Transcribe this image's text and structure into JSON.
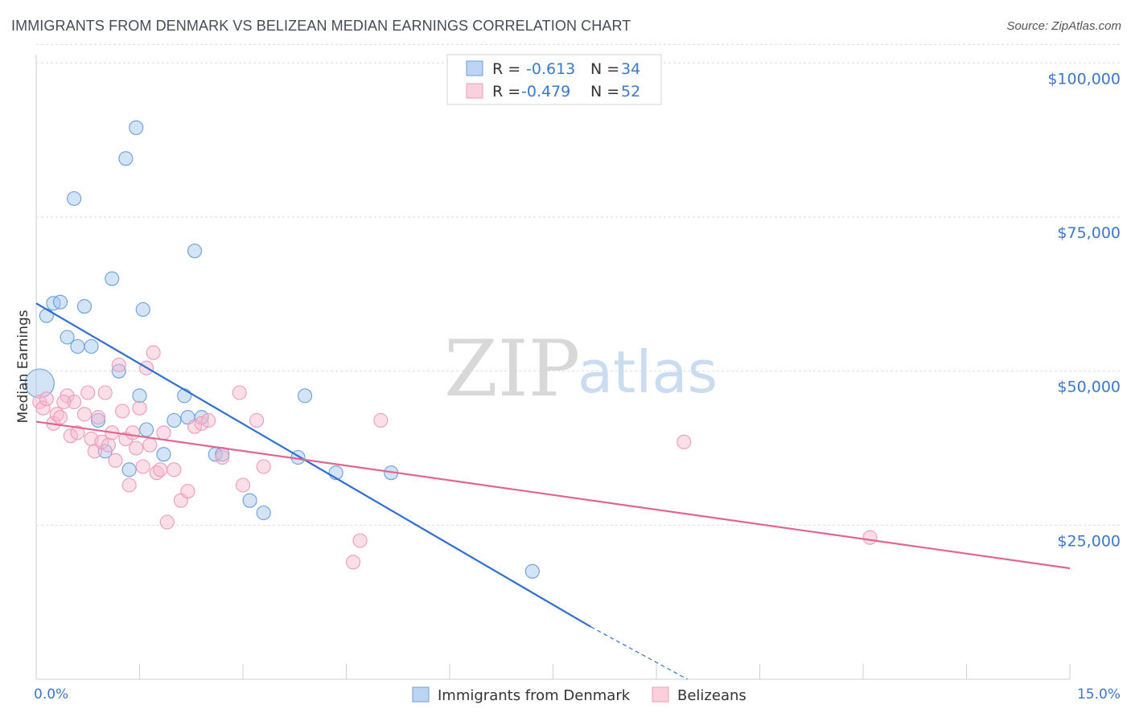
{
  "header": {
    "title": "IMMIGRANTS FROM DENMARK VS BELIZEAN MEDIAN EARNINGS CORRELATION CHART",
    "source": "Source: ZipAtlas.com"
  },
  "watermark": {
    "zip": "ZIP",
    "atlas": "atlas"
  },
  "legend": {
    "r_label": "R =",
    "n_label": "N =",
    "rows": [
      {
        "r": "-0.613",
        "n": "34"
      },
      {
        "r": "-0.479",
        "n": "52"
      }
    ]
  },
  "bottom_legend": [
    "Immigrants from Denmark",
    "Belizeans"
  ],
  "chart_data": {
    "type": "scatter",
    "title": "IMMIGRANTS FROM DENMARK VS BELIZEAN MEDIAN EARNINGS CORRELATION CHART",
    "xlabel": "",
    "ylabel": "Median Earnings",
    "xlim": [
      0,
      15
    ],
    "ylim": [
      0,
      105000
    ],
    "x_tick_labels": [
      "0.0%",
      "15.0%"
    ],
    "y_ticks": [
      25000,
      50000,
      75000,
      100000
    ],
    "y_tick_labels": [
      "$25,000",
      "$50,000",
      "$75,000",
      "$100,000"
    ],
    "grid": "horizontal dashed",
    "legend_position": "top-center",
    "colors": {
      "denmark": "#6a9fdc",
      "belizeans": "#f09ab8",
      "denmark_line": "#2f6fcf",
      "belizeans_line": "#e0668f"
    },
    "series": [
      {
        "name": "Immigrants from Denmark",
        "color": "#6a9fdc",
        "points": [
          [
            0.05,
            48000
          ],
          [
            0.15,
            59000
          ],
          [
            0.25,
            61000
          ],
          [
            0.35,
            61200
          ],
          [
            0.45,
            55500
          ],
          [
            0.55,
            78000
          ],
          [
            0.6,
            54000
          ],
          [
            0.7,
            60500
          ],
          [
            0.8,
            54000
          ],
          [
            0.9,
            42000
          ],
          [
            1.0,
            37000
          ],
          [
            1.1,
            65000
          ],
          [
            1.2,
            50000
          ],
          [
            1.3,
            84500
          ],
          [
            1.35,
            34000
          ],
          [
            1.45,
            89500
          ],
          [
            1.55,
            60000
          ],
          [
            1.5,
            46000
          ],
          [
            1.6,
            40500
          ],
          [
            1.85,
            36500
          ],
          [
            2.0,
            42000
          ],
          [
            2.15,
            46000
          ],
          [
            2.2,
            42500
          ],
          [
            2.3,
            69500
          ],
          [
            2.4,
            42500
          ],
          [
            2.6,
            36500
          ],
          [
            2.7,
            36500
          ],
          [
            3.1,
            29000
          ],
          [
            3.3,
            27000
          ],
          [
            3.8,
            36000
          ],
          [
            3.9,
            46000
          ],
          [
            4.35,
            33500
          ],
          [
            5.15,
            33500
          ],
          [
            7.2,
            17500
          ]
        ]
      },
      {
        "name": "Belizeans",
        "color": "#f09ab8",
        "points": [
          [
            0.05,
            45000
          ],
          [
            0.1,
            44000
          ],
          [
            0.15,
            45500
          ],
          [
            0.25,
            41500
          ],
          [
            0.3,
            43000
          ],
          [
            0.35,
            42500
          ],
          [
            0.45,
            46000
          ],
          [
            0.5,
            39500
          ],
          [
            0.55,
            45000
          ],
          [
            0.6,
            40000
          ],
          [
            0.7,
            43000
          ],
          [
            0.75,
            46500
          ],
          [
            0.8,
            39000
          ],
          [
            0.85,
            37000
          ],
          [
            0.9,
            42500
          ],
          [
            0.95,
            38500
          ],
          [
            1.0,
            46500
          ],
          [
            1.05,
            38000
          ],
          [
            1.1,
            40000
          ],
          [
            1.15,
            35500
          ],
          [
            1.2,
            51000
          ],
          [
            1.25,
            43500
          ],
          [
            1.3,
            39000
          ],
          [
            1.35,
            31500
          ],
          [
            1.4,
            40000
          ],
          [
            1.45,
            37500
          ],
          [
            1.5,
            44000
          ],
          [
            1.55,
            34500
          ],
          [
            1.6,
            50500
          ],
          [
            1.65,
            38000
          ],
          [
            1.7,
            53000
          ],
          [
            1.75,
            33500
          ],
          [
            1.8,
            34000
          ],
          [
            1.85,
            40000
          ],
          [
            1.9,
            25500
          ],
          [
            2.0,
            34000
          ],
          [
            2.1,
            29000
          ],
          [
            2.2,
            30500
          ],
          [
            2.3,
            41000
          ],
          [
            2.4,
            41500
          ],
          [
            2.5,
            42000
          ],
          [
            2.7,
            36000
          ],
          [
            2.95,
            46500
          ],
          [
            3.0,
            31500
          ],
          [
            3.2,
            42000
          ],
          [
            3.3,
            34500
          ],
          [
            4.6,
            19000
          ],
          [
            4.7,
            22500
          ],
          [
            5.0,
            42000
          ],
          [
            9.4,
            38500
          ],
          [
            12.1,
            23000
          ],
          [
            0.4,
            45000
          ]
        ]
      }
    ],
    "trendlines": [
      {
        "series": "Immigrants from Denmark",
        "x1": 0,
        "y1": 61000,
        "x2": 8.05,
        "y2": 8500,
        "dashed_to": [
          9.45,
          0
        ]
      },
      {
        "series": "Belizeans",
        "x1": 0,
        "y1": 41800,
        "x2": 15,
        "y2": 18000
      }
    ]
  }
}
